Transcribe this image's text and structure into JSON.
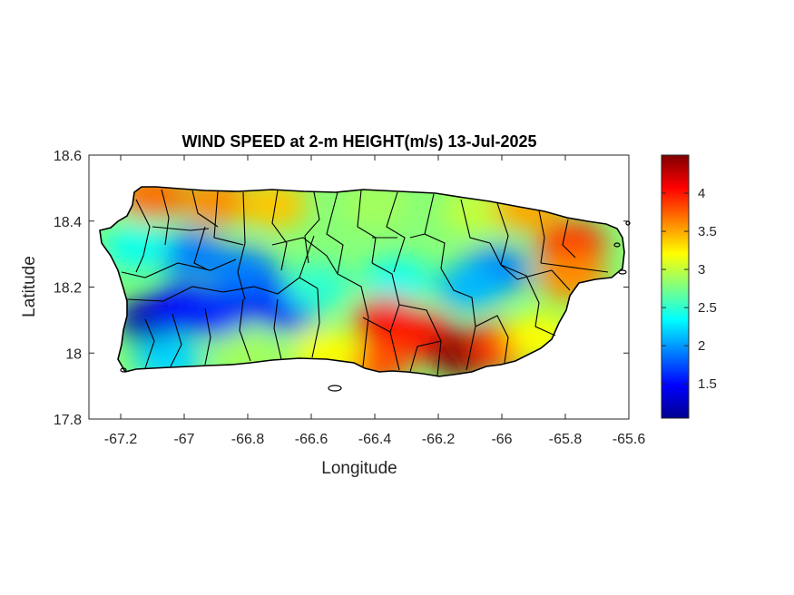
{
  "chart_data": {
    "type": "heatmap",
    "title": "WIND SPEED at 2-m HEIGHT(m/s) 13-Jul-2025",
    "xlabel": "Longitude",
    "ylabel": "Latitude",
    "xlim": [
      -67.3,
      -65.6
    ],
    "ylim": [
      17.8,
      18.6
    ],
    "x_ticks": [
      -67.2,
      -67,
      -66.8,
      -66.6,
      -66.4,
      -66.2,
      -66,
      -65.8,
      -65.6
    ],
    "x_tick_labels": [
      "-67.2",
      "-67",
      "-66.8",
      "-66.6",
      "-66.4",
      "-66.2",
      "-66",
      "-65.8",
      "-65.6"
    ],
    "y_ticks": [
      17.8,
      18,
      18.2,
      18.4,
      18.6
    ],
    "y_tick_labels": [
      "17.8",
      "18",
      "18.2",
      "18.4",
      "18.6"
    ],
    "colorbar": {
      "colormap": "jet",
      "range": [
        1.05,
        4.5
      ],
      "ticks": [
        1.5,
        2,
        2.5,
        3,
        3.5,
        4
      ],
      "tick_labels": [
        "1.5",
        "2",
        "2.5",
        "3",
        "3.5",
        "4"
      ]
    },
    "grid": false,
    "region_field": [
      {
        "lon": -67.1,
        "lat": 18.1,
        "value": 1.2
      },
      {
        "lon": -67.0,
        "lat": 18.14,
        "value": 1.5
      },
      {
        "lon": -66.9,
        "lat": 18.12,
        "value": 1.6
      },
      {
        "lon": -66.75,
        "lat": 18.18,
        "value": 1.4
      },
      {
        "lon": -66.68,
        "lat": 18.14,
        "value": 1.6
      },
      {
        "lon": -66.82,
        "lat": 18.25,
        "value": 1.9
      },
      {
        "lon": -66.98,
        "lat": 18.3,
        "value": 1.9
      },
      {
        "lon": -67.15,
        "lat": 18.32,
        "value": 2.4
      },
      {
        "lon": -67.1,
        "lat": 18.48,
        "value": 3.7
      },
      {
        "lon": -66.9,
        "lat": 18.46,
        "value": 3.6
      },
      {
        "lon": -66.72,
        "lat": 18.45,
        "value": 3.4
      },
      {
        "lon": -66.4,
        "lat": 18.45,
        "value": 2.9
      },
      {
        "lon": -66.08,
        "lat": 18.43,
        "value": 3.0
      },
      {
        "lon": -65.92,
        "lat": 18.44,
        "value": 3.5
      },
      {
        "lon": -65.78,
        "lat": 18.33,
        "value": 3.9
      },
      {
        "lon": -65.78,
        "lat": 18.23,
        "value": 3.6
      },
      {
        "lon": -66.02,
        "lat": 18.25,
        "value": 1.9
      },
      {
        "lon": -66.1,
        "lat": 18.2,
        "value": 2.1
      },
      {
        "lon": -66.33,
        "lat": 18.22,
        "value": 2.4
      },
      {
        "lon": -66.58,
        "lat": 18.2,
        "value": 2.5
      },
      {
        "lon": -66.36,
        "lat": 18.1,
        "value": 4.1
      },
      {
        "lon": -66.25,
        "lat": 18.05,
        "value": 4.0
      },
      {
        "lon": -66.12,
        "lat": 18.0,
        "value": 4.5
      },
      {
        "lon": -66.0,
        "lat": 18.02,
        "value": 3.9
      },
      {
        "lon": -65.88,
        "lat": 18.05,
        "value": 3.2
      },
      {
        "lon": -66.4,
        "lat": 17.97,
        "value": 3.8
      },
      {
        "lon": -66.55,
        "lat": 18.0,
        "value": 3.2
      },
      {
        "lon": -66.8,
        "lat": 18.0,
        "value": 2.9
      },
      {
        "lon": -67.05,
        "lat": 17.98,
        "value": 2.2
      }
    ]
  }
}
